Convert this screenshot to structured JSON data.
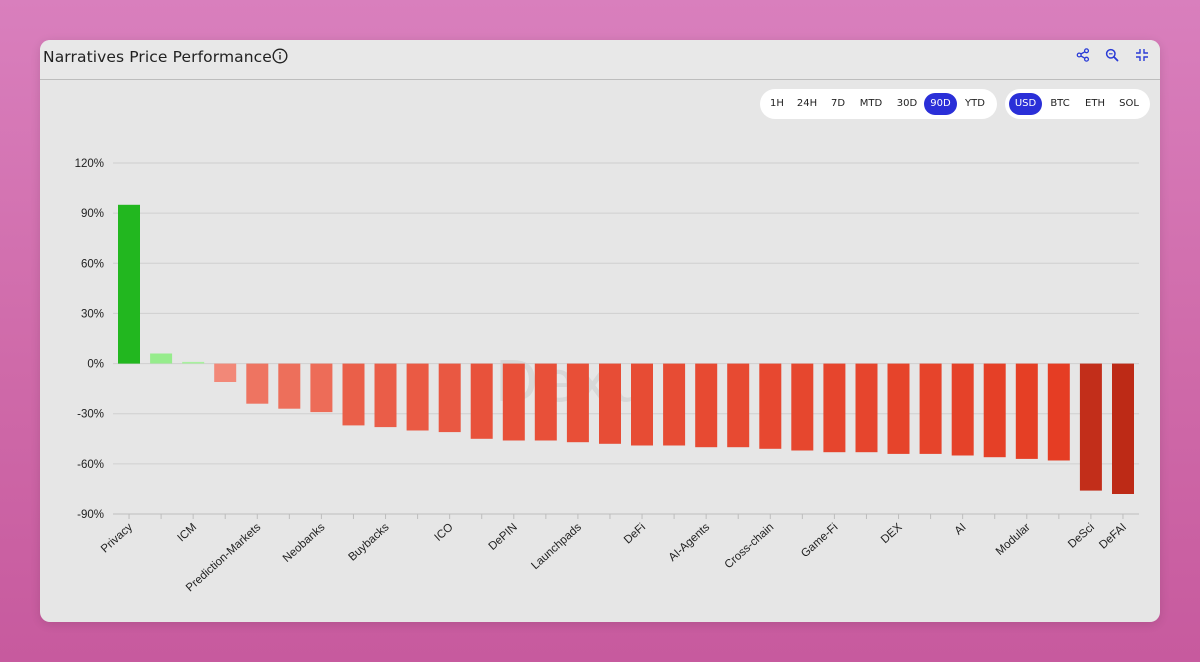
{
  "header": {
    "title": "Narratives Price Performance",
    "icons": [
      "info-icon",
      "share-icon",
      "search-icon",
      "collapse-icon"
    ]
  },
  "timeframes": {
    "options": [
      "1H",
      "24H",
      "7D",
      "MTD",
      "30D",
      "90D",
      "YTD"
    ],
    "selected": "90D"
  },
  "currencies": {
    "options": [
      "USD",
      "BTC",
      "ETH",
      "SOL"
    ],
    "selected": "USD"
  },
  "watermark": "Dexu",
  "colors": {
    "accent": "#2a2fd8",
    "strong_positive": "#22b71f",
    "light_positive": "#96ec8c",
    "negative_light": "#f08070",
    "negative_mid": "#e33b22",
    "negative_dark": "#b82a17"
  },
  "chart_data": {
    "type": "bar",
    "title": "Narratives Price Performance",
    "xlabel": "",
    "ylabel": "",
    "ylim": [
      -90,
      120
    ],
    "yticks": [
      -90,
      -60,
      -30,
      0,
      30,
      60,
      90,
      120
    ],
    "ytick_labels": [
      "-90%",
      "-60%",
      "-30%",
      "0%",
      "30%",
      "60%",
      "90%",
      "120%"
    ],
    "grid": true,
    "categories": [
      "Privacy",
      "",
      "ICM",
      "",
      "Prediction-Markets",
      "",
      "Neobanks",
      "",
      "Buybacks",
      "",
      "ICO",
      "",
      "DePIN",
      "",
      "Launchpads",
      "",
      "DeFi",
      "",
      "AI-Agents",
      "",
      "Cross-chain",
      "",
      "Game-Fi",
      "",
      "DEX",
      "",
      "AI",
      "",
      "Modular",
      "",
      "DeSci",
      "DeFAI"
    ],
    "values": [
      95,
      6,
      1,
      -11,
      -24,
      -27,
      -29,
      -37,
      -38,
      -40,
      -41,
      -45,
      -46,
      -46,
      -47,
      -48,
      -49,
      -49,
      -50,
      -50,
      -51,
      -52,
      -53,
      -53,
      -54,
      -54,
      -55,
      -56,
      -57,
      -58,
      -76,
      -78
    ]
  }
}
